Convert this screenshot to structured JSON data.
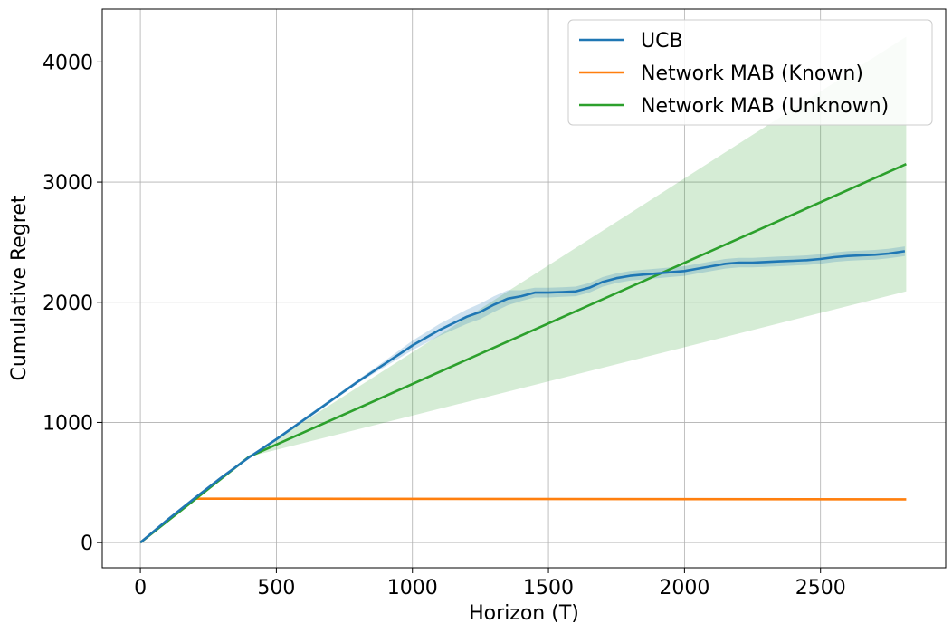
{
  "chart_data": {
    "type": "line",
    "xlabel": "Horizon (T)",
    "ylabel": "Cumulative Regret",
    "xlim": [
      -140,
      2960
    ],
    "ylim": [
      -210,
      4440
    ],
    "xticks": [
      0,
      500,
      1000,
      1500,
      2000,
      2500
    ],
    "yticks": [
      0,
      1000,
      2000,
      3000,
      4000
    ],
    "grid": true,
    "legend_position": "top-right",
    "series": [
      {
        "name": "UCB",
        "color": "#1f77b4",
        "x": [
          0,
          100,
          200,
          300,
          400,
          500,
          600,
          700,
          800,
          900,
          1000,
          1100,
          1200,
          1250,
          1300,
          1350,
          1400,
          1450,
          1500,
          1550,
          1600,
          1650,
          1700,
          1750,
          1800,
          1850,
          1900,
          1950,
          2000,
          2050,
          2100,
          2150,
          2200,
          2250,
          2300,
          2350,
          2400,
          2450,
          2500,
          2550,
          2600,
          2650,
          2700,
          2750,
          2810
        ],
        "y": [
          0,
          190,
          370,
          545,
          710,
          860,
          1020,
          1180,
          1340,
          1490,
          1640,
          1770,
          1880,
          1920,
          1980,
          2030,
          2050,
          2080,
          2080,
          2085,
          2090,
          2120,
          2170,
          2200,
          2220,
          2230,
          2240,
          2250,
          2260,
          2280,
          2300,
          2320,
          2330,
          2330,
          2335,
          2340,
          2345,
          2350,
          2360,
          2375,
          2385,
          2390,
          2395,
          2405,
          2425
        ],
        "band_low": [
          0,
          190,
          370,
          545,
          705,
          850,
          1005,
          1165,
          1325,
          1465,
          1600,
          1720,
          1820,
          1860,
          1920,
          1975,
          2010,
          2040,
          2040,
          2045,
          2050,
          2080,
          2130,
          2160,
          2180,
          2190,
          2200,
          2210,
          2220,
          2240,
          2260,
          2280,
          2290,
          2290,
          2295,
          2300,
          2305,
          2310,
          2320,
          2335,
          2345,
          2350,
          2355,
          2365,
          2385
        ],
        "band_high": [
          0,
          190,
          370,
          545,
          715,
          870,
          1035,
          1195,
          1355,
          1515,
          1680,
          1820,
          1940,
          1990,
          2050,
          2100,
          2100,
          2120,
          2120,
          2125,
          2130,
          2160,
          2210,
          2240,
          2260,
          2270,
          2280,
          2290,
          2300,
          2320,
          2340,
          2360,
          2370,
          2370,
          2375,
          2380,
          2385,
          2390,
          2400,
          2415,
          2425,
          2430,
          2435,
          2445,
          2465
        ]
      },
      {
        "name": "Network MAB (Known)",
        "color": "#ff7f0e",
        "x": [
          0,
          200,
          2815
        ],
        "y": [
          0,
          365,
          360
        ]
      },
      {
        "name": "Network MAB (Unknown)",
        "color": "#2ca02c",
        "x": [
          0,
          400,
          2815
        ],
        "y": [
          0,
          715,
          3150
        ],
        "band_x": [
          0,
          400,
          2815
        ],
        "band_low": [
          0,
          715,
          2090
        ],
        "band_high": [
          0,
          715,
          4210
        ]
      }
    ]
  }
}
